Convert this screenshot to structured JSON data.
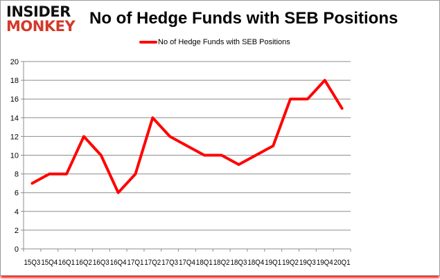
{
  "logo": {
    "line1": "INSIDER",
    "line2": "MONKEY"
  },
  "chart_data": {
    "type": "line",
    "title": "No of Hedge Funds with SEB Positions",
    "categories": [
      "15Q3",
      "15Q4",
      "16Q1",
      "16Q2",
      "16Q3",
      "16Q4",
      "17Q1",
      "17Q2",
      "17Q3",
      "17Q4",
      "18Q1",
      "18Q2",
      "18Q3",
      "18Q4",
      "19Q1",
      "19Q2",
      "19Q3",
      "19Q4",
      "20Q1"
    ],
    "series": [
      {
        "name": "No of Hedge Funds with SEB Positions",
        "values": [
          7,
          8,
          8,
          12,
          10,
          6,
          8,
          14,
          12,
          11,
          10,
          10,
          9,
          10,
          11,
          16,
          16,
          18,
          15
        ],
        "color": "#ff0000"
      }
    ],
    "ylim": [
      0,
      20
    ],
    "yticks": [
      0,
      2,
      4,
      6,
      8,
      10,
      12,
      14,
      16,
      18,
      20
    ],
    "grid": true,
    "legend": "top"
  }
}
